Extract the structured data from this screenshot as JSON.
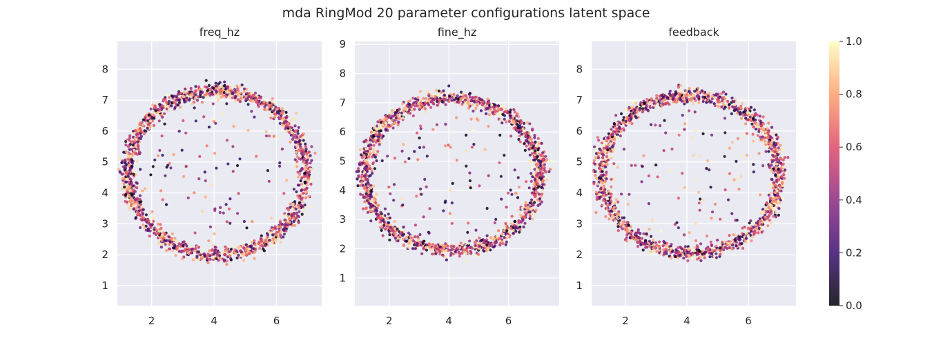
{
  "figure": {
    "title": "mda RingMod 20 parameter configurations latent space"
  },
  "colors": {
    "panel_bg": "#eaeaf2",
    "grid": "#ffffff",
    "colormap": "magma",
    "colormap_stops": [
      "#000004",
      "#3b0f70",
      "#8c2981",
      "#de4968",
      "#fe9f6d",
      "#fcfdbf"
    ]
  },
  "colorbar": {
    "range": [
      0,
      1
    ],
    "ticks": [
      "0.0",
      "0.2",
      "0.4",
      "0.6",
      "0.8",
      "1.0"
    ]
  },
  "chart_data": [
    {
      "type": "scatter",
      "title": "freq_hz",
      "xlabel": "",
      "ylabel": "",
      "grid": true,
      "xlim": [
        0.9,
        7.45
      ],
      "ylim": [
        0.35,
        8.9
      ],
      "xticks": [
        "2",
        "4",
        "6"
      ],
      "yticks": [
        "1",
        "2",
        "3",
        "4",
        "5",
        "6",
        "7",
        "8"
      ],
      "ring": {
        "center": [
          4.1,
          4.65
        ],
        "radius_x": 2.85,
        "radius_y": 2.65
      },
      "note": "approx. 2000 points colored by normalized parameter value (0-1) forming an elliptical ring with sparse interior points"
    },
    {
      "type": "scatter",
      "title": "fine_hz",
      "xlabel": "",
      "ylabel": "",
      "grid": true,
      "xlim": [
        0.85,
        7.7
      ],
      "ylim": [
        0.05,
        9.1
      ],
      "xticks": [
        "2",
        "4",
        "6"
      ],
      "yticks": [
        "1",
        "2",
        "3",
        "4",
        "5",
        "6",
        "7",
        "8",
        "9"
      ],
      "ring": {
        "center": [
          4.1,
          4.55
        ],
        "radius_x": 2.95,
        "radius_y": 2.6
      },
      "note": "approx. 2000 points colored by normalized parameter value (0-1) forming an elliptical ring with sparse interior points"
    },
    {
      "type": "scatter",
      "title": "feedback",
      "xlabel": "",
      "ylabel": "",
      "grid": true,
      "xlim": [
        0.9,
        7.55
      ],
      "ylim": [
        0.35,
        8.9
      ],
      "xticks": [
        "2",
        "4",
        "6"
      ],
      "yticks": [
        "1",
        "2",
        "3",
        "4",
        "5",
        "6",
        "7",
        "8"
      ],
      "ring": {
        "center": [
          4.1,
          4.6
        ],
        "radius_x": 2.9,
        "radius_y": 2.55
      },
      "note": "approx. 2000 points colored by normalized parameter value (0-1) forming an elliptical ring with sparse interior points"
    }
  ]
}
